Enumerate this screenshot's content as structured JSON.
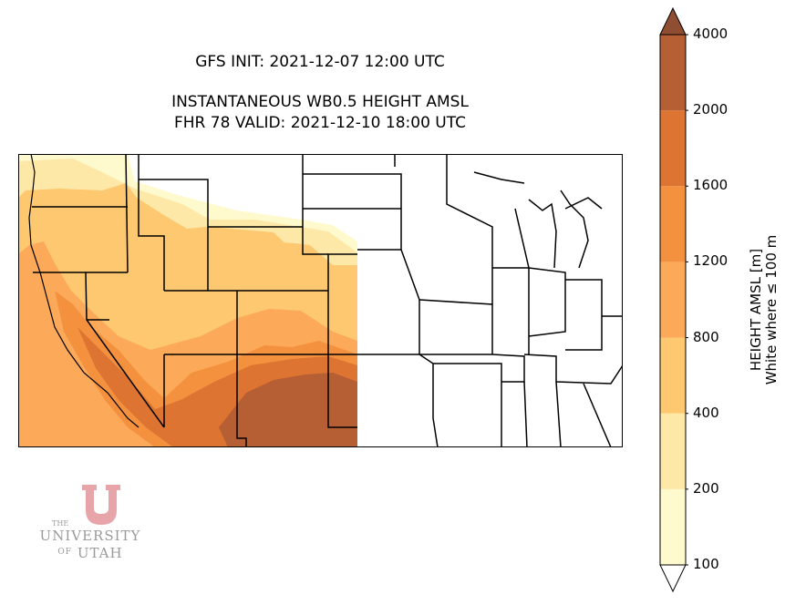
{
  "title": {
    "line1": "GFS INIT: 2021-12-07 12:00 UTC",
    "line2": "INSTANTANEOUS WB0.5 HEIGHT AMSL",
    "line3": "FHR 78 VALID: 2021-12-10 18:00 UTC"
  },
  "colorbar": {
    "label_line1": "HEIGHT AMSL [m]",
    "label_line2": "White where ≤ 100 m",
    "levels": [
      {
        "value": "100",
        "color": "#fffacd"
      },
      {
        "value": "200",
        "color": "#fee8a8"
      },
      {
        "value": "400",
        "color": "#fdc870"
      },
      {
        "value": "800",
        "color": "#fcaa5a"
      },
      {
        "value": "1200",
        "color": "#f4913f"
      },
      {
        "value": "1600",
        "color": "#dd7432"
      },
      {
        "value": "2000",
        "color": "#b65e34"
      },
      {
        "value": "4000",
        "color": "#8f4d32"
      }
    ],
    "extend_min_color": "#ffffff",
    "extend_max_color": "#8f4d32"
  },
  "logo": {
    "the": "THE",
    "university": "UNIVERSITY",
    "of": "OF",
    "utah": "UTAH",
    "color": "#e7a5a9"
  }
}
